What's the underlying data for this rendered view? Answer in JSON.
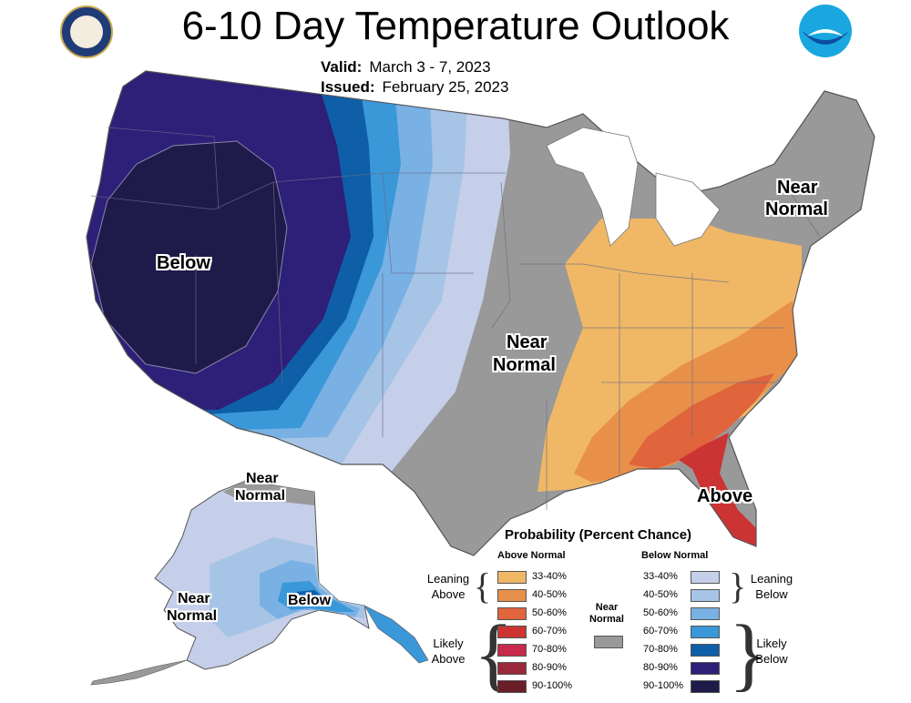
{
  "title": "6-10 Day Temperature Outlook",
  "valid_label": "Valid:",
  "valid_value": "March 3 - 7, 2023",
  "issued_label": "Issued:",
  "issued_value": "February 25, 2023",
  "map_labels": {
    "below_west": "Below",
    "near_normal_central_1": "Near",
    "near_normal_central_2": "Normal",
    "near_normal_ne_1": "Near",
    "near_normal_ne_2": "Normal",
    "above_southeast": "Above",
    "alaska_near_normal_north_1": "Near",
    "alaska_near_normal_north_2": "Normal",
    "alaska_near_normal_west_1": "Near",
    "alaska_near_normal_west_2": "Normal",
    "alaska_below": "Below"
  },
  "legend": {
    "title": "Probability (Percent Chance)",
    "above_header": "Above Normal",
    "below_header": "Below Normal",
    "near_normal_1": "Near",
    "near_normal_2": "Normal",
    "near_color": "#999999",
    "leaning_above_1": "Leaning",
    "leaning_above_2": "Above",
    "likely_above_1": "Likely",
    "likely_above_2": "Above",
    "leaning_below_1": "Leaning",
    "leaning_below_2": "Below",
    "likely_below_1": "Likely",
    "likely_below_2": "Below",
    "above": [
      {
        "label": "33-40%",
        "color": "#f0b866"
      },
      {
        "label": "40-50%",
        "color": "#e8904a"
      },
      {
        "label": "50-60%",
        "color": "#e0643c"
      },
      {
        "label": "60-70%",
        "color": "#cc3333"
      },
      {
        "label": "70-80%",
        "color": "#c82a4a"
      },
      {
        "label": "80-90%",
        "color": "#9a2a3a"
      },
      {
        "label": "90-100%",
        "color": "#6a1e28"
      }
    ],
    "below": [
      {
        "label": "33-40%",
        "color": "#c6cfe9"
      },
      {
        "label": "40-50%",
        "color": "#a6c4e6"
      },
      {
        "label": "50-60%",
        "color": "#79b1e4"
      },
      {
        "label": "60-70%",
        "color": "#3a98d8"
      },
      {
        "label": "70-80%",
        "color": "#0e5ea8"
      },
      {
        "label": "80-90%",
        "color": "#2e1f78"
      },
      {
        "label": "90-100%",
        "color": "#1e1a4a"
      }
    ]
  }
}
